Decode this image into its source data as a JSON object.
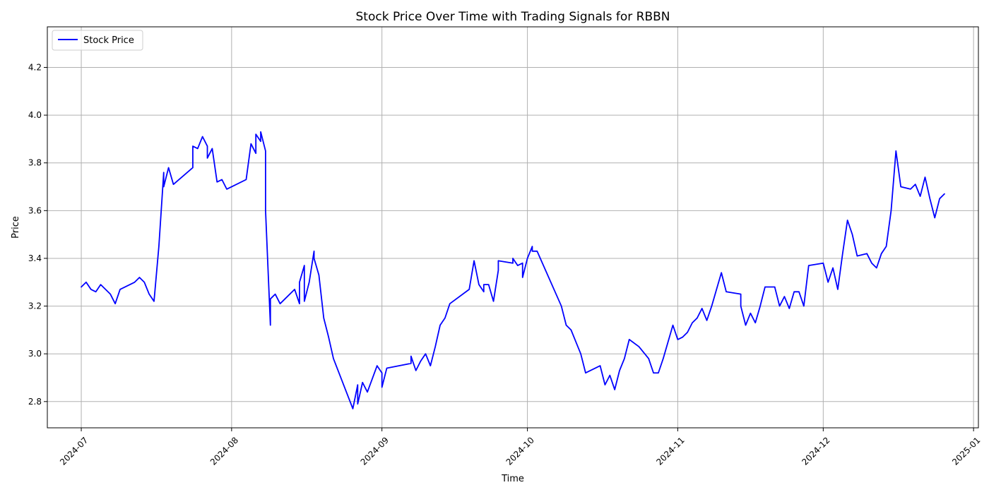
{
  "chart_data": {
    "type": "line",
    "title": "Stock Price Over Time with Trading Signals for RBBN",
    "xlabel": "Time",
    "ylabel": "Price",
    "xlim": [
      "2024-06-24",
      "2025-01-02"
    ],
    "ylim": [
      2.69,
      4.37
    ],
    "x_ticks": [
      "2024-07-01",
      "2024-08-01",
      "2024-09-01",
      "2024-10-01",
      "2024-11-01",
      "2024-12-01",
      "2025-01-01"
    ],
    "x_tick_labels": [
      "2024-07",
      "2024-08",
      "2024-09",
      "2024-10",
      "2024-11",
      "2024-12",
      "2025-01"
    ],
    "y_ticks": [
      2.8,
      3.0,
      3.2,
      3.4,
      3.6,
      3.8,
      4.0,
      4.2
    ],
    "y_tick_labels": [
      "2.8",
      "3.0",
      "3.2",
      "3.4",
      "3.6",
      "3.8",
      "4.0",
      "4.2"
    ],
    "grid": true,
    "legend_position": "top-left",
    "series": [
      {
        "name": "Stock Price",
        "color": "#0000ff",
        "points": [
          [
            "2024-07-01",
            3.28
          ],
          [
            "2024-07-02",
            3.3
          ],
          [
            "2024-07-03",
            3.27
          ],
          [
            "2024-07-04",
            3.26
          ],
          [
            "2024-07-05",
            3.29
          ],
          [
            "2024-07-07",
            3.25
          ],
          [
            "2024-07-08",
            3.21
          ],
          [
            "2024-07-09",
            3.27
          ],
          [
            "2024-07-12",
            3.3
          ],
          [
            "2024-07-13",
            3.32
          ],
          [
            "2024-07-14",
            3.3
          ],
          [
            "2024-07-15",
            3.25
          ],
          [
            "2024-07-16",
            3.22
          ],
          [
            "2024-07-17",
            3.45
          ],
          [
            "2024-07-18",
            3.76
          ],
          [
            "2024-07-18",
            3.7
          ],
          [
            "2024-07-19",
            3.78
          ],
          [
            "2024-07-20",
            3.71
          ],
          [
            "2024-07-24",
            3.78
          ],
          [
            "2024-07-24",
            3.87
          ],
          [
            "2024-07-25",
            3.86
          ],
          [
            "2024-07-26",
            3.91
          ],
          [
            "2024-07-27",
            3.87
          ],
          [
            "2024-07-27",
            3.82
          ],
          [
            "2024-07-28",
            3.86
          ],
          [
            "2024-07-29",
            3.72
          ],
          [
            "2024-07-30",
            3.73
          ],
          [
            "2024-07-31",
            3.69
          ],
          [
            "2024-08-01",
            3.7
          ],
          [
            "2024-08-04",
            3.73
          ],
          [
            "2024-08-05",
            3.88
          ],
          [
            "2024-08-06",
            3.84
          ],
          [
            "2024-08-06",
            3.92
          ],
          [
            "2024-08-07",
            3.89
          ],
          [
            "2024-08-07",
            3.93
          ],
          [
            "2024-08-08",
            3.85
          ],
          [
            "2024-08-08",
            3.6
          ],
          [
            "2024-08-09",
            3.12
          ],
          [
            "2024-08-09",
            3.23
          ],
          [
            "2024-08-10",
            3.25
          ],
          [
            "2024-08-11",
            3.21
          ],
          [
            "2024-08-14",
            3.27
          ],
          [
            "2024-08-15",
            3.21
          ],
          [
            "2024-08-15",
            3.3
          ],
          [
            "2024-08-16",
            3.37
          ],
          [
            "2024-08-16",
            3.22
          ],
          [
            "2024-08-17",
            3.3
          ],
          [
            "2024-08-18",
            3.43
          ],
          [
            "2024-08-18",
            3.4
          ],
          [
            "2024-08-19",
            3.33
          ],
          [
            "2024-08-20",
            3.15
          ],
          [
            "2024-08-21",
            3.07
          ],
          [
            "2024-08-22",
            2.98
          ],
          [
            "2024-08-26",
            2.77
          ],
          [
            "2024-08-27",
            2.87
          ],
          [
            "2024-08-27",
            2.79
          ],
          [
            "2024-08-28",
            2.88
          ],
          [
            "2024-08-29",
            2.84
          ],
          [
            "2024-08-31",
            2.95
          ],
          [
            "2024-09-01",
            2.92
          ],
          [
            "2024-09-01",
            2.86
          ],
          [
            "2024-09-02",
            2.94
          ],
          [
            "2024-09-07",
            2.96
          ],
          [
            "2024-09-07",
            2.99
          ],
          [
            "2024-09-08",
            2.93
          ],
          [
            "2024-09-09",
            2.97
          ],
          [
            "2024-09-10",
            3.0
          ],
          [
            "2024-09-11",
            2.95
          ],
          [
            "2024-09-12",
            3.03
          ],
          [
            "2024-09-13",
            3.12
          ],
          [
            "2024-09-14",
            3.15
          ],
          [
            "2024-09-15",
            3.21
          ],
          [
            "2024-09-19",
            3.27
          ],
          [
            "2024-09-20",
            3.39
          ],
          [
            "2024-09-21",
            3.29
          ],
          [
            "2024-09-22",
            3.26
          ],
          [
            "2024-09-22",
            3.29
          ],
          [
            "2024-09-23",
            3.29
          ],
          [
            "2024-09-24",
            3.22
          ],
          [
            "2024-09-25",
            3.35
          ],
          [
            "2024-09-25",
            3.39
          ],
          [
            "2024-09-28",
            3.38
          ],
          [
            "2024-09-28",
            3.4
          ],
          [
            "2024-09-29",
            3.37
          ],
          [
            "2024-09-30",
            3.38
          ],
          [
            "2024-09-30",
            3.32
          ],
          [
            "2024-10-01",
            3.4
          ],
          [
            "2024-10-02",
            3.45
          ],
          [
            "2024-10-02",
            3.43
          ],
          [
            "2024-10-03",
            3.43
          ],
          [
            "2024-10-08",
            3.2
          ],
          [
            "2024-10-09",
            3.12
          ],
          [
            "2024-10-10",
            3.1
          ],
          [
            "2024-10-11",
            3.05
          ],
          [
            "2024-10-12",
            3.0
          ],
          [
            "2024-10-13",
            2.92
          ],
          [
            "2024-10-16",
            2.95
          ],
          [
            "2024-10-17",
            2.87
          ],
          [
            "2024-10-18",
            2.91
          ],
          [
            "2024-10-19",
            2.85
          ],
          [
            "2024-10-20",
            2.93
          ],
          [
            "2024-10-21",
            2.98
          ],
          [
            "2024-10-22",
            3.06
          ],
          [
            "2024-10-24",
            3.03
          ],
          [
            "2024-10-26",
            2.98
          ],
          [
            "2024-10-27",
            2.92
          ],
          [
            "2024-10-28",
            2.92
          ],
          [
            "2024-10-29",
            2.98
          ],
          [
            "2024-10-30",
            3.05
          ],
          [
            "2024-10-31",
            3.12
          ],
          [
            "2024-11-01",
            3.06
          ],
          [
            "2024-11-02",
            3.07
          ],
          [
            "2024-11-03",
            3.09
          ],
          [
            "2024-11-04",
            3.13
          ],
          [
            "2024-11-05",
            3.15
          ],
          [
            "2024-11-06",
            3.19
          ],
          [
            "2024-11-07",
            3.14
          ],
          [
            "2024-11-08",
            3.2
          ],
          [
            "2024-11-09",
            3.27
          ],
          [
            "2024-11-10",
            3.34
          ],
          [
            "2024-11-11",
            3.26
          ],
          [
            "2024-11-14",
            3.25
          ],
          [
            "2024-11-14",
            3.2
          ],
          [
            "2024-11-15",
            3.12
          ],
          [
            "2024-11-16",
            3.17
          ],
          [
            "2024-11-17",
            3.13
          ],
          [
            "2024-11-18",
            3.2
          ],
          [
            "2024-11-19",
            3.28
          ],
          [
            "2024-11-21",
            3.28
          ],
          [
            "2024-11-22",
            3.2
          ],
          [
            "2024-11-23",
            3.24
          ],
          [
            "2024-11-24",
            3.19
          ],
          [
            "2024-11-25",
            3.26
          ],
          [
            "2024-11-26",
            3.26
          ],
          [
            "2024-11-27",
            3.2
          ],
          [
            "2024-11-28",
            3.37
          ],
          [
            "2024-12-01",
            3.38
          ],
          [
            "2024-12-02",
            3.3
          ],
          [
            "2024-12-03",
            3.36
          ],
          [
            "2024-12-04",
            3.27
          ],
          [
            "2024-12-05",
            3.42
          ],
          [
            "2024-12-06",
            3.56
          ],
          [
            "2024-12-07",
            3.5
          ],
          [
            "2024-12-08",
            3.41
          ],
          [
            "2024-12-10",
            3.42
          ],
          [
            "2024-12-11",
            3.38
          ],
          [
            "2024-12-12",
            3.36
          ],
          [
            "2024-12-13",
            3.42
          ],
          [
            "2024-12-14",
            3.45
          ],
          [
            "2024-12-15",
            3.6
          ],
          [
            "2024-12-16",
            3.85
          ],
          [
            "2024-12-17",
            3.7
          ],
          [
            "2024-12-19",
            3.69
          ],
          [
            "2024-12-20",
            3.71
          ],
          [
            "2024-12-21",
            3.66
          ],
          [
            "2024-12-22",
            3.74
          ],
          [
            "2024-12-23",
            3.65
          ],
          [
            "2024-12-24",
            3.57
          ],
          [
            "2024-12-25",
            3.65
          ],
          [
            "2024-12-26",
            3.67
          ]
        ]
      }
    ],
    "signals": []
  }
}
